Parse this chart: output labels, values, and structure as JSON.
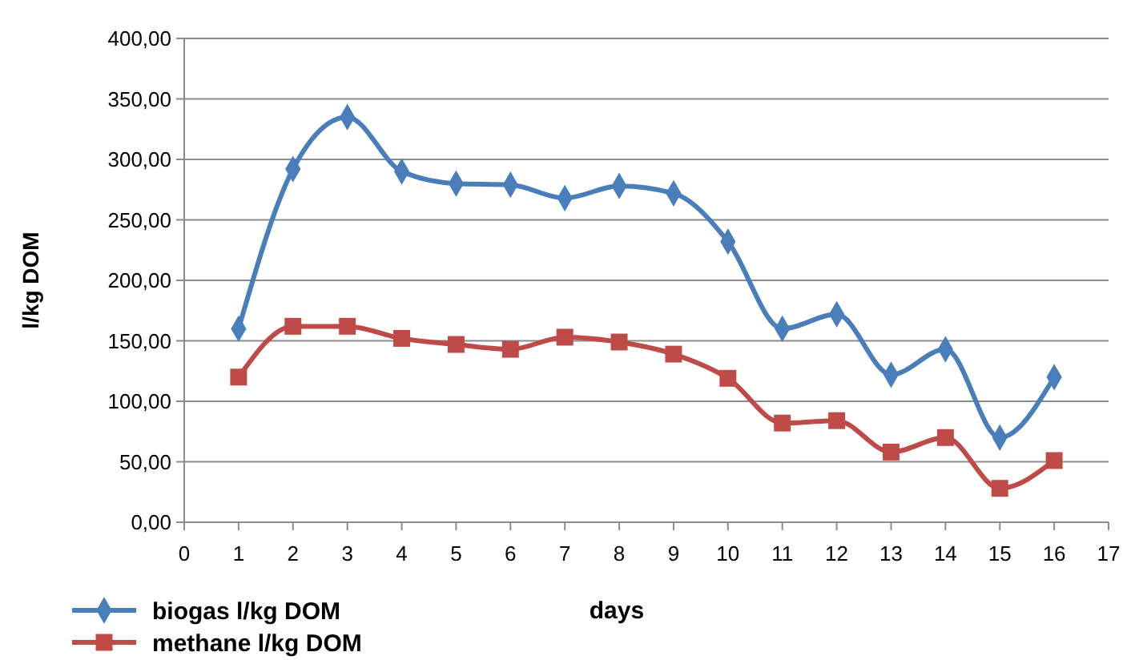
{
  "chart_data": {
    "type": "line",
    "xlabel": "days",
    "ylabel": "l/kg DOM",
    "x": [
      1,
      2,
      3,
      4,
      5,
      6,
      7,
      8,
      9,
      10,
      11,
      12,
      13,
      14,
      15,
      16
    ],
    "series": [
      {
        "name": "biogas l/kg DOM",
        "color": "#4a7ebb",
        "marker": "diamond",
        "values": [
          160,
          292,
          335,
          290,
          280,
          279,
          268,
          278,
          272,
          232,
          160,
          172,
          122,
          143,
          70,
          120
        ]
      },
      {
        "name": "methane l/kg DOM",
        "color": "#be4b48",
        "marker": "square",
        "values": [
          120,
          162,
          162,
          152,
          147,
          143,
          153,
          149,
          139,
          119,
          82,
          84,
          58,
          70,
          28,
          51
        ]
      }
    ],
    "xlim": [
      0,
      17
    ],
    "xticks": [
      0,
      1,
      2,
      3,
      4,
      5,
      6,
      7,
      8,
      9,
      10,
      11,
      12,
      13,
      14,
      15,
      16,
      17
    ],
    "ylim": [
      0,
      400
    ],
    "yticks": [
      {
        "value": 0,
        "label": "0,00"
      },
      {
        "value": 50,
        "label": "50,00"
      },
      {
        "value": 100,
        "label": "100,00"
      },
      {
        "value": 150,
        "label": "150,00"
      },
      {
        "value": 200,
        "label": "200,00"
      },
      {
        "value": 250,
        "label": "250,00"
      },
      {
        "value": 300,
        "label": "300,00"
      },
      {
        "value": 350,
        "label": "350,00"
      },
      {
        "value": 400,
        "label": "400,00"
      }
    ],
    "grid": "y",
    "legend": "bottom left"
  }
}
